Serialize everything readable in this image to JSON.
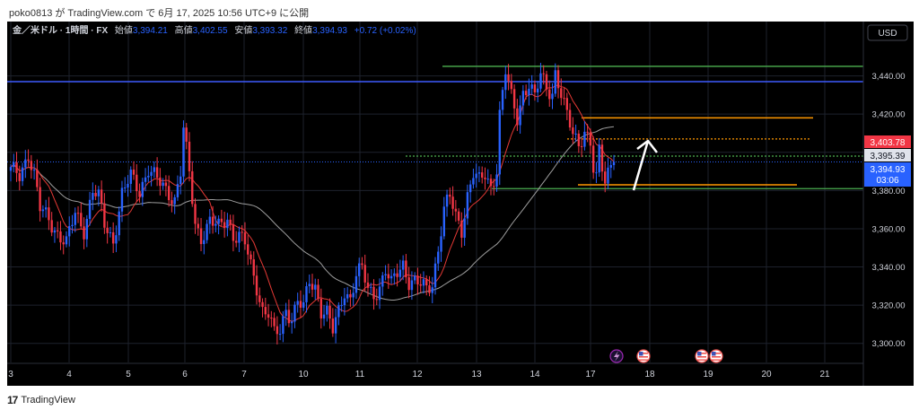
{
  "publisher": {
    "text": "poko0813 が TradingView.com で 6月 17, 2025 10:56 UTC+9 に公開"
  },
  "branding": {
    "logo_text": "TradingView",
    "logo_mark": "17"
  },
  "colors": {
    "up_candle": "#2962ff",
    "down_candle": "#f23645",
    "ma_fast": "#e53935",
    "ma_slow": "#9e9e9e",
    "blue_line": "#3d5afe",
    "green_line": "#4caf50",
    "orange_line": "#ff9800",
    "arrow": "#ffffff"
  },
  "header": {
    "symbol": "金／米ドル · 1時間 · FX",
    "open_label": "始値",
    "open": "3,394.21",
    "high_label": "高値",
    "high": "3,402.55",
    "low_label": "安値",
    "low": "3,393.32",
    "close_label": "終値",
    "close": "3,394.93",
    "change": "+0.72 (+0.02%)"
  },
  "currency_button": {
    "label": "USD"
  },
  "price_labels": {
    "red": "3,403.78",
    "gray": "3,395.39",
    "current": "3,394.93",
    "countdown": "03:06"
  },
  "event_icons": [
    "lightning-icon",
    "us-flag-icon",
    "us-flag-icon",
    "us-flag-icon"
  ],
  "chart_data": {
    "type": "candlestick",
    "ylim": [
      3290,
      3460
    ],
    "y_ticks": [
      3300,
      3320,
      3340,
      3360,
      3380,
      3400,
      3420,
      3440
    ],
    "y_tick_labels": [
      "3,300.00",
      "3,320.00",
      "3,340.00",
      "3,360.00",
      "3,380.00",
      "3,400.00",
      "3,420.00",
      "3,440.00"
    ],
    "x_ticks": [
      "3",
      "4",
      "5",
      "6",
      "7",
      "10",
      "11",
      "12",
      "13",
      "14",
      "17",
      "18",
      "19",
      "20",
      "21"
    ],
    "anchors": [
      [
        0,
        3390
      ],
      [
        3,
        3388
      ],
      [
        6,
        3400
      ],
      [
        8,
        3388
      ],
      [
        10,
        3370
      ],
      [
        13,
        3365
      ],
      [
        16,
        3358
      ],
      [
        19,
        3352
      ],
      [
        22,
        3368
      ],
      [
        25,
        3360
      ],
      [
        28,
        3380
      ],
      [
        30,
        3376
      ],
      [
        32,
        3362
      ],
      [
        35,
        3354
      ],
      [
        38,
        3378
      ],
      [
        41,
        3387
      ],
      [
        44,
        3380
      ],
      [
        47,
        3392
      ],
      [
        50,
        3385
      ],
      [
        53,
        3380
      ],
      [
        56,
        3376
      ],
      [
        58,
        3390
      ],
      [
        59,
        3412
      ],
      [
        61,
        3388
      ],
      [
        63,
        3362
      ],
      [
        65,
        3356
      ],
      [
        68,
        3364
      ],
      [
        71,
        3360
      ],
      [
        74,
        3366
      ],
      [
        76,
        3357
      ],
      [
        78,
        3356
      ],
      [
        80,
        3352
      ],
      [
        82,
        3340
      ],
      [
        84,
        3330
      ],
      [
        86,
        3318
      ],
      [
        88,
        3316
      ],
      [
        90,
        3304
      ],
      [
        92,
        3306
      ],
      [
        94,
        3318
      ],
      [
        96,
        3314
      ],
      [
        98,
        3322
      ],
      [
        100,
        3318
      ],
      [
        102,
        3332
      ],
      [
        104,
        3330
      ],
      [
        106,
        3318
      ],
      [
        108,
        3316
      ],
      [
        110,
        3306
      ],
      [
        112,
        3316
      ],
      [
        114,
        3328
      ],
      [
        116,
        3324
      ],
      [
        118,
        3336
      ],
      [
        120,
        3338
      ],
      [
        122,
        3328
      ],
      [
        124,
        3326
      ],
      [
        126,
        3330
      ],
      [
        128,
        3338
      ],
      [
        130,
        3330
      ],
      [
        132,
        3337
      ],
      [
        134,
        3342
      ],
      [
        136,
        3333
      ],
      [
        138,
        3332
      ],
      [
        140,
        3330
      ],
      [
        142,
        3328
      ],
      [
        144,
        3332
      ],
      [
        146,
        3350
      ],
      [
        148,
        3370
      ],
      [
        150,
        3376
      ],
      [
        152,
        3366
      ],
      [
        154,
        3360
      ],
      [
        156,
        3378
      ],
      [
        158,
        3389
      ],
      [
        160,
        3384
      ],
      [
        162,
        3388
      ],
      [
        164,
        3382
      ],
      [
        166,
        3392
      ],
      [
        167,
        3420
      ],
      [
        169,
        3442
      ],
      [
        171,
        3428
      ],
      [
        173,
        3418
      ],
      [
        175,
        3432
      ],
      [
        177,
        3436
      ],
      [
        179,
        3428
      ],
      [
        181,
        3440
      ],
      [
        183,
        3434
      ],
      [
        185,
        3432
      ],
      [
        186,
        3442
      ],
      [
        188,
        3430
      ],
      [
        190,
        3418
      ],
      [
        192,
        3410
      ],
      [
        194,
        3405
      ],
      [
        196,
        3412
      ],
      [
        198,
        3404
      ],
      [
        199,
        3390
      ],
      [
        200,
        3385
      ],
      [
        201,
        3400
      ],
      [
        202,
        3392
      ],
      [
        203,
        3386
      ],
      [
        204,
        3391
      ],
      [
        205,
        3395
      ],
      [
        206,
        3396
      ]
    ],
    "total_candles": 207,
    "levels": [
      {
        "name": "blue-resistance",
        "value": 3437,
        "style": "solid"
      },
      {
        "name": "green-top",
        "value": 3445,
        "style": "solid"
      },
      {
        "name": "orange-upper",
        "value": 3418,
        "style": "solid"
      },
      {
        "name": "orange-dotted",
        "value": 3407,
        "style": "dotted"
      },
      {
        "name": "green-dotted",
        "value": 3398,
        "style": "dotted"
      },
      {
        "name": "orange-lower",
        "value": 3383,
        "style": "solid"
      },
      {
        "name": "green-support",
        "value": 3381,
        "style": "solid"
      },
      {
        "name": "blue-dotted",
        "value": 3394.93,
        "style": "dotted"
      }
    ]
  }
}
